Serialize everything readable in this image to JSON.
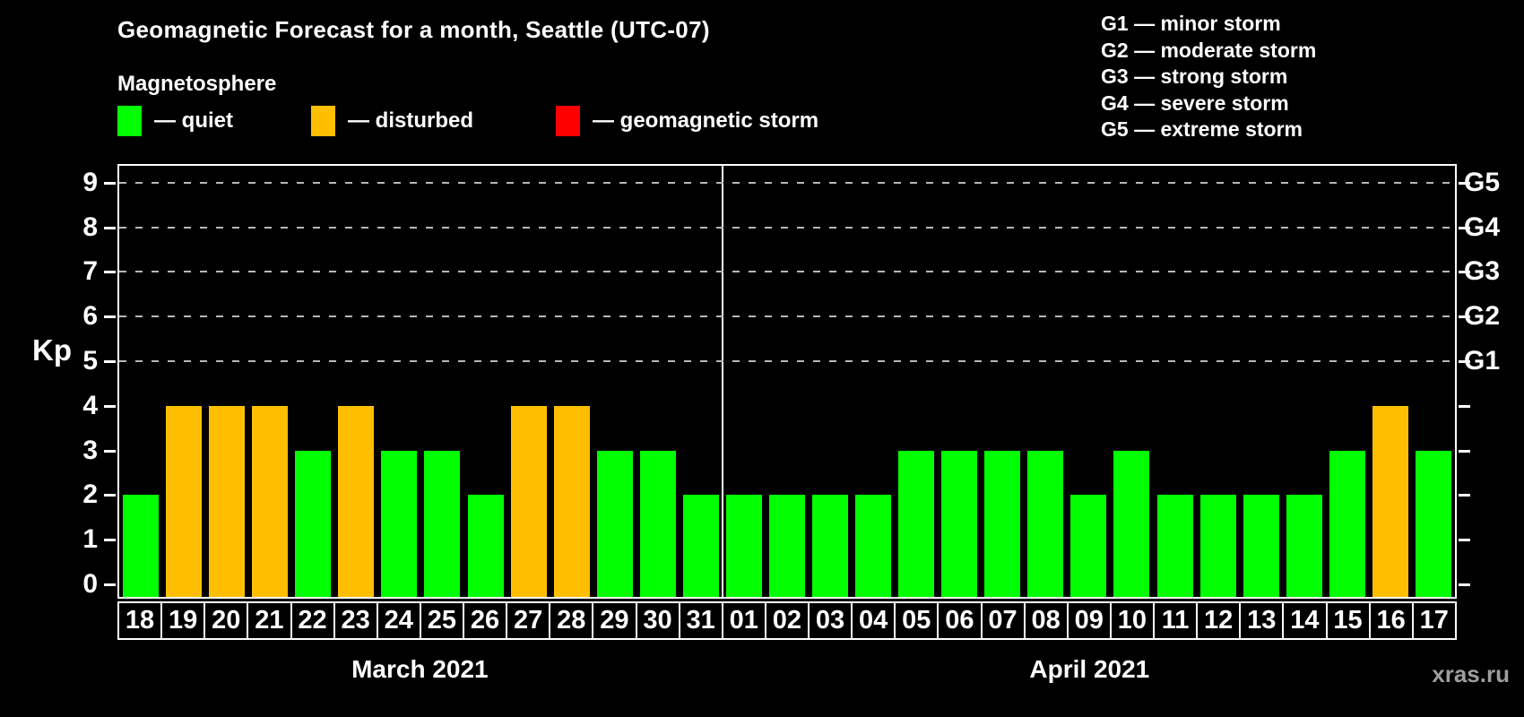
{
  "title": "Geomagnetic Forecast for a month, Seattle (UTC-07)",
  "subtitle": "Magnetosphere",
  "watermark": "xras.ru",
  "colors": {
    "quiet": "#00ff00",
    "disturbed": "#ffbf00",
    "storm": "#ff0000",
    "grid": "#b8b8b8",
    "axis": "#ffffff",
    "background": "#000000"
  },
  "legend": [
    {
      "key": "quiet",
      "label": "— quiet"
    },
    {
      "key": "disturbed",
      "label": "— disturbed"
    },
    {
      "key": "storm",
      "label": "— geomagnetic storm"
    }
  ],
  "storm_scale_legend": [
    "G1 — minor storm",
    "G2 — moderate storm",
    "G3 — strong storm",
    "G4 — severe storm",
    "G5 — extreme storm"
  ],
  "chart_data": {
    "type": "bar",
    "title": "Geomagnetic Forecast for a month, Seattle (UTC-07)",
    "ylabel": "Kp",
    "ylim": [
      0,
      9
    ],
    "yticks": [
      0,
      1,
      2,
      3,
      4,
      5,
      6,
      7,
      8,
      9
    ],
    "gridlines_at": [
      5,
      6,
      7,
      8,
      9
    ],
    "grid": "dashed horizontal at storm levels only",
    "right_axis": [
      {
        "kp": 5,
        "label": "G1"
      },
      {
        "kp": 6,
        "label": "G2"
      },
      {
        "kp": 7,
        "label": "G3"
      },
      {
        "kp": 8,
        "label": "G4"
      },
      {
        "kp": 9,
        "label": "G5"
      }
    ],
    "months": [
      {
        "label": "March 2021",
        "values": [
          {
            "day": "18",
            "kp": 2,
            "status": "quiet"
          },
          {
            "day": "19",
            "kp": 4,
            "status": "disturbed"
          },
          {
            "day": "20",
            "kp": 4,
            "status": "disturbed"
          },
          {
            "day": "21",
            "kp": 4,
            "status": "disturbed"
          },
          {
            "day": "22",
            "kp": 3,
            "status": "quiet"
          },
          {
            "day": "23",
            "kp": 4,
            "status": "disturbed"
          },
          {
            "day": "24",
            "kp": 3,
            "status": "quiet"
          },
          {
            "day": "25",
            "kp": 3,
            "status": "quiet"
          },
          {
            "day": "26",
            "kp": 2,
            "status": "quiet"
          },
          {
            "day": "27",
            "kp": 4,
            "status": "disturbed"
          },
          {
            "day": "28",
            "kp": 4,
            "status": "disturbed"
          },
          {
            "day": "29",
            "kp": 3,
            "status": "quiet"
          },
          {
            "day": "30",
            "kp": 3,
            "status": "quiet"
          },
          {
            "day": "31",
            "kp": 2,
            "status": "quiet"
          }
        ]
      },
      {
        "label": "April 2021",
        "values": [
          {
            "day": "01",
            "kp": 2,
            "status": "quiet"
          },
          {
            "day": "02",
            "kp": 2,
            "status": "quiet"
          },
          {
            "day": "03",
            "kp": 2,
            "status": "quiet"
          },
          {
            "day": "04",
            "kp": 2,
            "status": "quiet"
          },
          {
            "day": "05",
            "kp": 3,
            "status": "quiet"
          },
          {
            "day": "06",
            "kp": 3,
            "status": "quiet"
          },
          {
            "day": "07",
            "kp": 3,
            "status": "quiet"
          },
          {
            "day": "08",
            "kp": 3,
            "status": "quiet"
          },
          {
            "day": "09",
            "kp": 2,
            "status": "quiet"
          },
          {
            "day": "10",
            "kp": 3,
            "status": "quiet"
          },
          {
            "day": "11",
            "kp": 2,
            "status": "quiet"
          },
          {
            "day": "12",
            "kp": 2,
            "status": "quiet"
          },
          {
            "day": "13",
            "kp": 2,
            "status": "quiet"
          },
          {
            "day": "14",
            "kp": 2,
            "status": "quiet"
          },
          {
            "day": "15",
            "kp": 3,
            "status": "quiet"
          },
          {
            "day": "16",
            "kp": 4,
            "status": "disturbed"
          },
          {
            "day": "17",
            "kp": 3,
            "status": "quiet"
          }
        ]
      }
    ]
  }
}
